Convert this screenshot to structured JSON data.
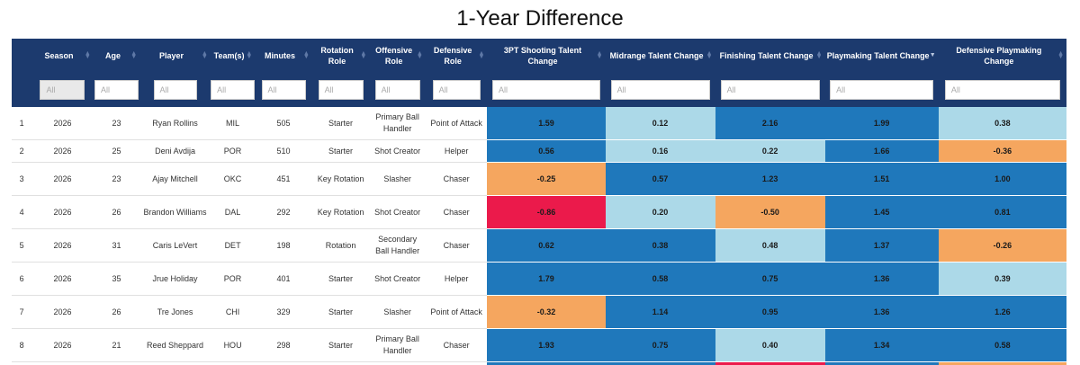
{
  "page": {
    "title": "1-Year Difference"
  },
  "columns": [
    {
      "key": "rank",
      "label": ""
    },
    {
      "key": "season",
      "label": "Season"
    },
    {
      "key": "age",
      "label": "Age"
    },
    {
      "key": "player",
      "label": "Player"
    },
    {
      "key": "teams",
      "label": "Team(s)"
    },
    {
      "key": "minutes",
      "label": "Minutes"
    },
    {
      "key": "rotation_role",
      "label": "Rotation Role"
    },
    {
      "key": "offensive_role",
      "label": "Offensive Role"
    },
    {
      "key": "defensive_role",
      "label": "Defensive Role"
    },
    {
      "key": "three_pt",
      "label": "3PT Shooting Talent Change"
    },
    {
      "key": "midrange",
      "label": "Midrange Talent Change"
    },
    {
      "key": "finishing",
      "label": "Finishing Talent Change"
    },
    {
      "key": "playmaking",
      "label": "Playmaking Talent Change"
    },
    {
      "key": "def_playmaking",
      "label": "Defensive Playmaking Change"
    }
  ],
  "filter_placeholder": "All",
  "colors": {
    "header_bg": "#1c3a6e",
    "dark_blue": "#1f78bb",
    "light_blue": "#acd9e8",
    "orange": "#f5a65f",
    "red": "#eb1a4b"
  },
  "rows": [
    {
      "rank": "1",
      "season": "2026",
      "age": "23",
      "player": "Ryan Rollins",
      "teams": "MIL",
      "minutes": "505",
      "rotation_role": "Starter",
      "offensive_role": "Primary Ball Handler",
      "defensive_role": "Point of Attack",
      "three_pt": "1.59",
      "midrange": "0.12",
      "finishing": "2.16",
      "playmaking": "1.99",
      "def_playmaking": "0.38"
    },
    {
      "rank": "2",
      "season": "2026",
      "age": "25",
      "player": "Deni Avdija",
      "teams": "POR",
      "minutes": "510",
      "rotation_role": "Starter",
      "offensive_role": "Shot Creator",
      "defensive_role": "Helper",
      "three_pt": "0.56",
      "midrange": "0.16",
      "finishing": "0.22",
      "playmaking": "1.66",
      "def_playmaking": "-0.36"
    },
    {
      "rank": "3",
      "season": "2026",
      "age": "23",
      "player": "Ajay Mitchell",
      "teams": "OKC",
      "minutes": "451",
      "rotation_role": "Key Rotation",
      "offensive_role": "Slasher",
      "defensive_role": "Chaser",
      "three_pt": "-0.25",
      "midrange": "0.57",
      "finishing": "1.23",
      "playmaking": "1.51",
      "def_playmaking": "1.00"
    },
    {
      "rank": "4",
      "season": "2026",
      "age": "26",
      "player": "Brandon Williams",
      "teams": "DAL",
      "minutes": "292",
      "rotation_role": "Key Rotation",
      "offensive_role": "Shot Creator",
      "defensive_role": "Chaser",
      "three_pt": "-0.86",
      "midrange": "0.20",
      "finishing": "-0.50",
      "playmaking": "1.45",
      "def_playmaking": "0.81"
    },
    {
      "rank": "5",
      "season": "2026",
      "age": "31",
      "player": "Caris LeVert",
      "teams": "DET",
      "minutes": "198",
      "rotation_role": "Rotation",
      "offensive_role": "Secondary Ball Handler",
      "defensive_role": "Chaser",
      "three_pt": "0.62",
      "midrange": "0.38",
      "finishing": "0.48",
      "playmaking": "1.37",
      "def_playmaking": "-0.26"
    },
    {
      "rank": "6",
      "season": "2026",
      "age": "35",
      "player": "Jrue Holiday",
      "teams": "POR",
      "minutes": "401",
      "rotation_role": "Starter",
      "offensive_role": "Shot Creator",
      "defensive_role": "Helper",
      "three_pt": "1.79",
      "midrange": "0.58",
      "finishing": "0.75",
      "playmaking": "1.36",
      "def_playmaking": "0.39"
    },
    {
      "rank": "7",
      "season": "2026",
      "age": "26",
      "player": "Tre Jones",
      "teams": "CHI",
      "minutes": "329",
      "rotation_role": "Starter",
      "offensive_role": "Slasher",
      "defensive_role": "Point of Attack",
      "three_pt": "-0.32",
      "midrange": "1.14",
      "finishing": "0.95",
      "playmaking": "1.36",
      "def_playmaking": "1.26"
    },
    {
      "rank": "8",
      "season": "2026",
      "age": "21",
      "player": "Reed Sheppard",
      "teams": "HOU",
      "minutes": "298",
      "rotation_role": "Starter",
      "offensive_role": "Primary Ball Handler",
      "defensive_role": "Chaser",
      "three_pt": "1.93",
      "midrange": "0.75",
      "finishing": "0.40",
      "playmaking": "1.34",
      "def_playmaking": "0.58"
    }
  ],
  "cell_colors": [
    [
      "db",
      "lb",
      "db",
      "db",
      "lb"
    ],
    [
      "db",
      "lb",
      "lb",
      "db",
      "or"
    ],
    [
      "or",
      "db",
      "db",
      "db",
      "db"
    ],
    [
      "rd",
      "lb",
      "or",
      "db",
      "db"
    ],
    [
      "db",
      "db",
      "lb",
      "db",
      "or"
    ],
    [
      "db",
      "db",
      "db",
      "db",
      "lb"
    ],
    [
      "or",
      "db",
      "db",
      "db",
      "db"
    ],
    [
      "db",
      "db",
      "lb",
      "db",
      "db"
    ]
  ],
  "next_row_colors": [
    "db",
    "db",
    "rd",
    "db",
    "or"
  ]
}
